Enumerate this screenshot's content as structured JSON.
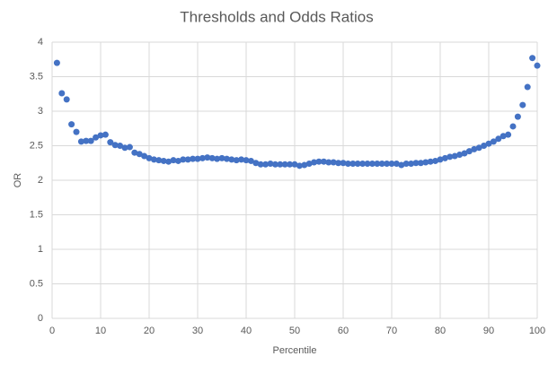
{
  "chart_data": {
    "type": "scatter",
    "title": "Thresholds and Odds Ratios",
    "x_label": "Percentile",
    "y_label": "OR",
    "x": [
      1,
      2,
      3,
      4,
      5,
      6,
      7,
      8,
      9,
      10,
      11,
      12,
      13,
      14,
      15,
      16,
      17,
      18,
      19,
      20,
      21,
      22,
      23,
      24,
      25,
      26,
      27,
      28,
      29,
      30,
      31,
      32,
      33,
      34,
      35,
      36,
      37,
      38,
      39,
      40,
      41,
      42,
      43,
      44,
      45,
      46,
      47,
      48,
      49,
      50,
      51,
      52,
      53,
      54,
      55,
      56,
      57,
      58,
      59,
      60,
      61,
      62,
      63,
      64,
      65,
      66,
      67,
      68,
      69,
      70,
      71,
      72,
      73,
      74,
      75,
      76,
      77,
      78,
      79,
      80,
      81,
      82,
      83,
      84,
      85,
      86,
      87,
      88,
      89,
      90,
      91,
      92,
      93,
      94,
      95,
      96,
      97,
      98,
      99,
      100
    ],
    "values": [
      3.7,
      3.26,
      3.17,
      2.81,
      2.7,
      2.56,
      2.57,
      2.57,
      2.62,
      2.65,
      2.66,
      2.55,
      2.51,
      2.5,
      2.47,
      2.48,
      2.4,
      2.38,
      2.35,
      2.32,
      2.3,
      2.29,
      2.28,
      2.27,
      2.29,
      2.28,
      2.3,
      2.3,
      2.31,
      2.31,
      2.32,
      2.33,
      2.32,
      2.31,
      2.32,
      2.31,
      2.3,
      2.29,
      2.3,
      2.29,
      2.28,
      2.25,
      2.23,
      2.23,
      2.24,
      2.23,
      2.23,
      2.23,
      2.23,
      2.23,
      2.21,
      2.22,
      2.24,
      2.26,
      2.27,
      2.27,
      2.26,
      2.26,
      2.25,
      2.25,
      2.24,
      2.24,
      2.24,
      2.24,
      2.24,
      2.24,
      2.24,
      2.24,
      2.24,
      2.24,
      2.24,
      2.22,
      2.24,
      2.24,
      2.25,
      2.25,
      2.26,
      2.27,
      2.28,
      2.3,
      2.32,
      2.34,
      2.35,
      2.37,
      2.39,
      2.42,
      2.45,
      2.47,
      2.5,
      2.53,
      2.56,
      2.6,
      2.64,
      2.66,
      2.78,
      2.92,
      3.09,
      3.35,
      3.77,
      3.66
    ],
    "color": "#4472c4",
    "xlim": [
      0,
      100
    ],
    "xticks": [
      0,
      10,
      20,
      30,
      40,
      50,
      60,
      70,
      80,
      90,
      100
    ],
    "ylim": [
      0,
      4
    ],
    "yticks": [
      0,
      0.5,
      1,
      1.5,
      2,
      2.5,
      3,
      3.5,
      4
    ],
    "grid": true
  }
}
